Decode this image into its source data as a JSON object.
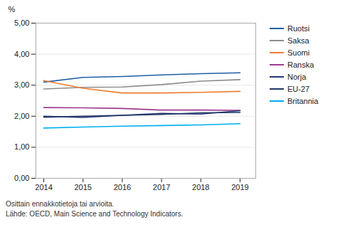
{
  "chart_data": {
    "type": "line",
    "y_label": "%",
    "x": [
      2014,
      2015,
      2016,
      2017,
      2018,
      2019
    ],
    "series": [
      {
        "name": "Ruotsi",
        "color": "#1f5fa6",
        "values": [
          3.1,
          3.25,
          3.28,
          3.33,
          3.37,
          3.4
        ]
      },
      {
        "name": "Saksa",
        "color": "#8c8c8c",
        "values": [
          2.88,
          2.93,
          2.94,
          3.02,
          3.13,
          3.18
        ]
      },
      {
        "name": "Suomi",
        "color": "#ed7d31",
        "values": [
          3.15,
          2.9,
          2.75,
          2.75,
          2.77,
          2.8
        ]
      },
      {
        "name": "Ranska",
        "color": "#9e3a8c",
        "values": [
          2.28,
          2.27,
          2.25,
          2.2,
          2.2,
          2.19
        ]
      },
      {
        "name": "Norja",
        "color": "#263574",
        "values": [
          2.0,
          1.96,
          2.03,
          2.09,
          2.07,
          2.18
        ]
      },
      {
        "name": "EU-27",
        "color": "#1f3864",
        "values": [
          1.97,
          2.0,
          2.03,
          2.06,
          2.11,
          2.12
        ]
      },
      {
        "name": "Britannia",
        "color": "#00b0f0",
        "values": [
          1.62,
          1.65,
          1.68,
          1.7,
          1.72,
          1.76
        ]
      }
    ],
    "xlim": [
      2013.8,
      2019.4
    ],
    "xticks": [
      2014,
      2015,
      2016,
      2017,
      2018,
      2019
    ],
    "ylim": [
      0.0,
      5.0
    ],
    "yticks": [
      {
        "value": 0.0,
        "label": "0,00"
      },
      {
        "value": 1.0,
        "label": "1,00"
      },
      {
        "value": 2.0,
        "label": "2,00"
      },
      {
        "value": 3.0,
        "label": "3,00"
      },
      {
        "value": 4.0,
        "label": "4,00"
      },
      {
        "value": 5.0,
        "label": "5,00"
      }
    ],
    "grid": "y",
    "legend": "right",
    "annotations": [
      "Osittain ennakkotietoja tai arvioita.",
      "Lähde: OECD, Main Science and Technology Indicators."
    ]
  }
}
